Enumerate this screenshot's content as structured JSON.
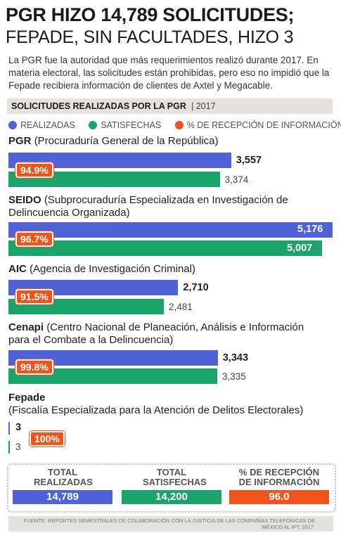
{
  "title_line1": "PGR HIZO 14,789 SOLICITUDES;",
  "title_line2": "FEPADE, SIN FACULTADES, HIZO 3",
  "intro": "La PGR fue la autoridad que más requerimientos realizó durante 2017. En materia electoral, las solicitudes están prohibidas, pero eso no impidió que la Fepade recibiera información de clientes de Axtel y Megacable.",
  "subheading": "SOLICITUDES REALIZADAS POR LA PGR",
  "subheading_year": "| 2017",
  "colors": {
    "realizadas": "#4f63d6",
    "satisfechas": "#1aa46b",
    "recepcion": "#f0541c"
  },
  "chart_data": {
    "type": "bar",
    "title": "SOLICITUDES REALIZADAS POR LA PGR | 2017",
    "legend": [
      "REALIZADAS",
      "SATISFECHAS",
      "% DE RECEPCIÓN DE INFORMACIÓN"
    ],
    "legend_placement": "top",
    "categories": [
      "PGR",
      "SEIDO",
      "AIC",
      "Cenapi",
      "Fepade"
    ],
    "category_descriptions": [
      "(Procuraduría General de la República)",
      "(Subprocuraduría Especializada en Investigación de Delincuencia Organizada)",
      "(Agencia de Investigación Criminal)",
      "(Centro Nacional de Planeación, Análisis e Información para el Combate a la Delincuencia)",
      "(Fiscalía Especializada para la Atención de Delitos Electorales)"
    ],
    "series": [
      {
        "name": "REALIZADAS",
        "values": [
          3557,
          5176,
          2710,
          3343,
          3
        ],
        "labels": [
          "3,557",
          "5,176",
          "2,710",
          "3,343",
          "3"
        ]
      },
      {
        "name": "SATISFECHAS",
        "values": [
          3374,
          5007,
          2481,
          3335,
          3
        ],
        "labels": [
          "3,374",
          "5,007",
          "2,481",
          "3,335",
          "3"
        ]
      },
      {
        "name": "% DE RECEPCIÓN DE INFORMACIÓN",
        "values": [
          94.9,
          96.7,
          91.5,
          99.8,
          100
        ],
        "labels": [
          "94.9%",
          "96.7%",
          "91.5%",
          "99.8%",
          "100%"
        ]
      }
    ],
    "xlim": [
      0,
      5176
    ]
  },
  "totals": {
    "realizadas_label": "TOTAL REALIZADAS",
    "realizadas_value": "14,789",
    "satisfechas_label": "TOTAL SATISFECHAS",
    "satisfechas_value": "14,200",
    "recepcion_label": "% DE RECEPCIÓN DE INFORMACIÓN",
    "recepcion_value": "96.0"
  },
  "source": "FUENTE: REPORTES SEMESTRALES DE COLABORACIÓN CON LA JUSTICIA DE LAS COMPAÑÍAS TELEFÓNICAS DE MÉXICO AL IFT, 2017."
}
